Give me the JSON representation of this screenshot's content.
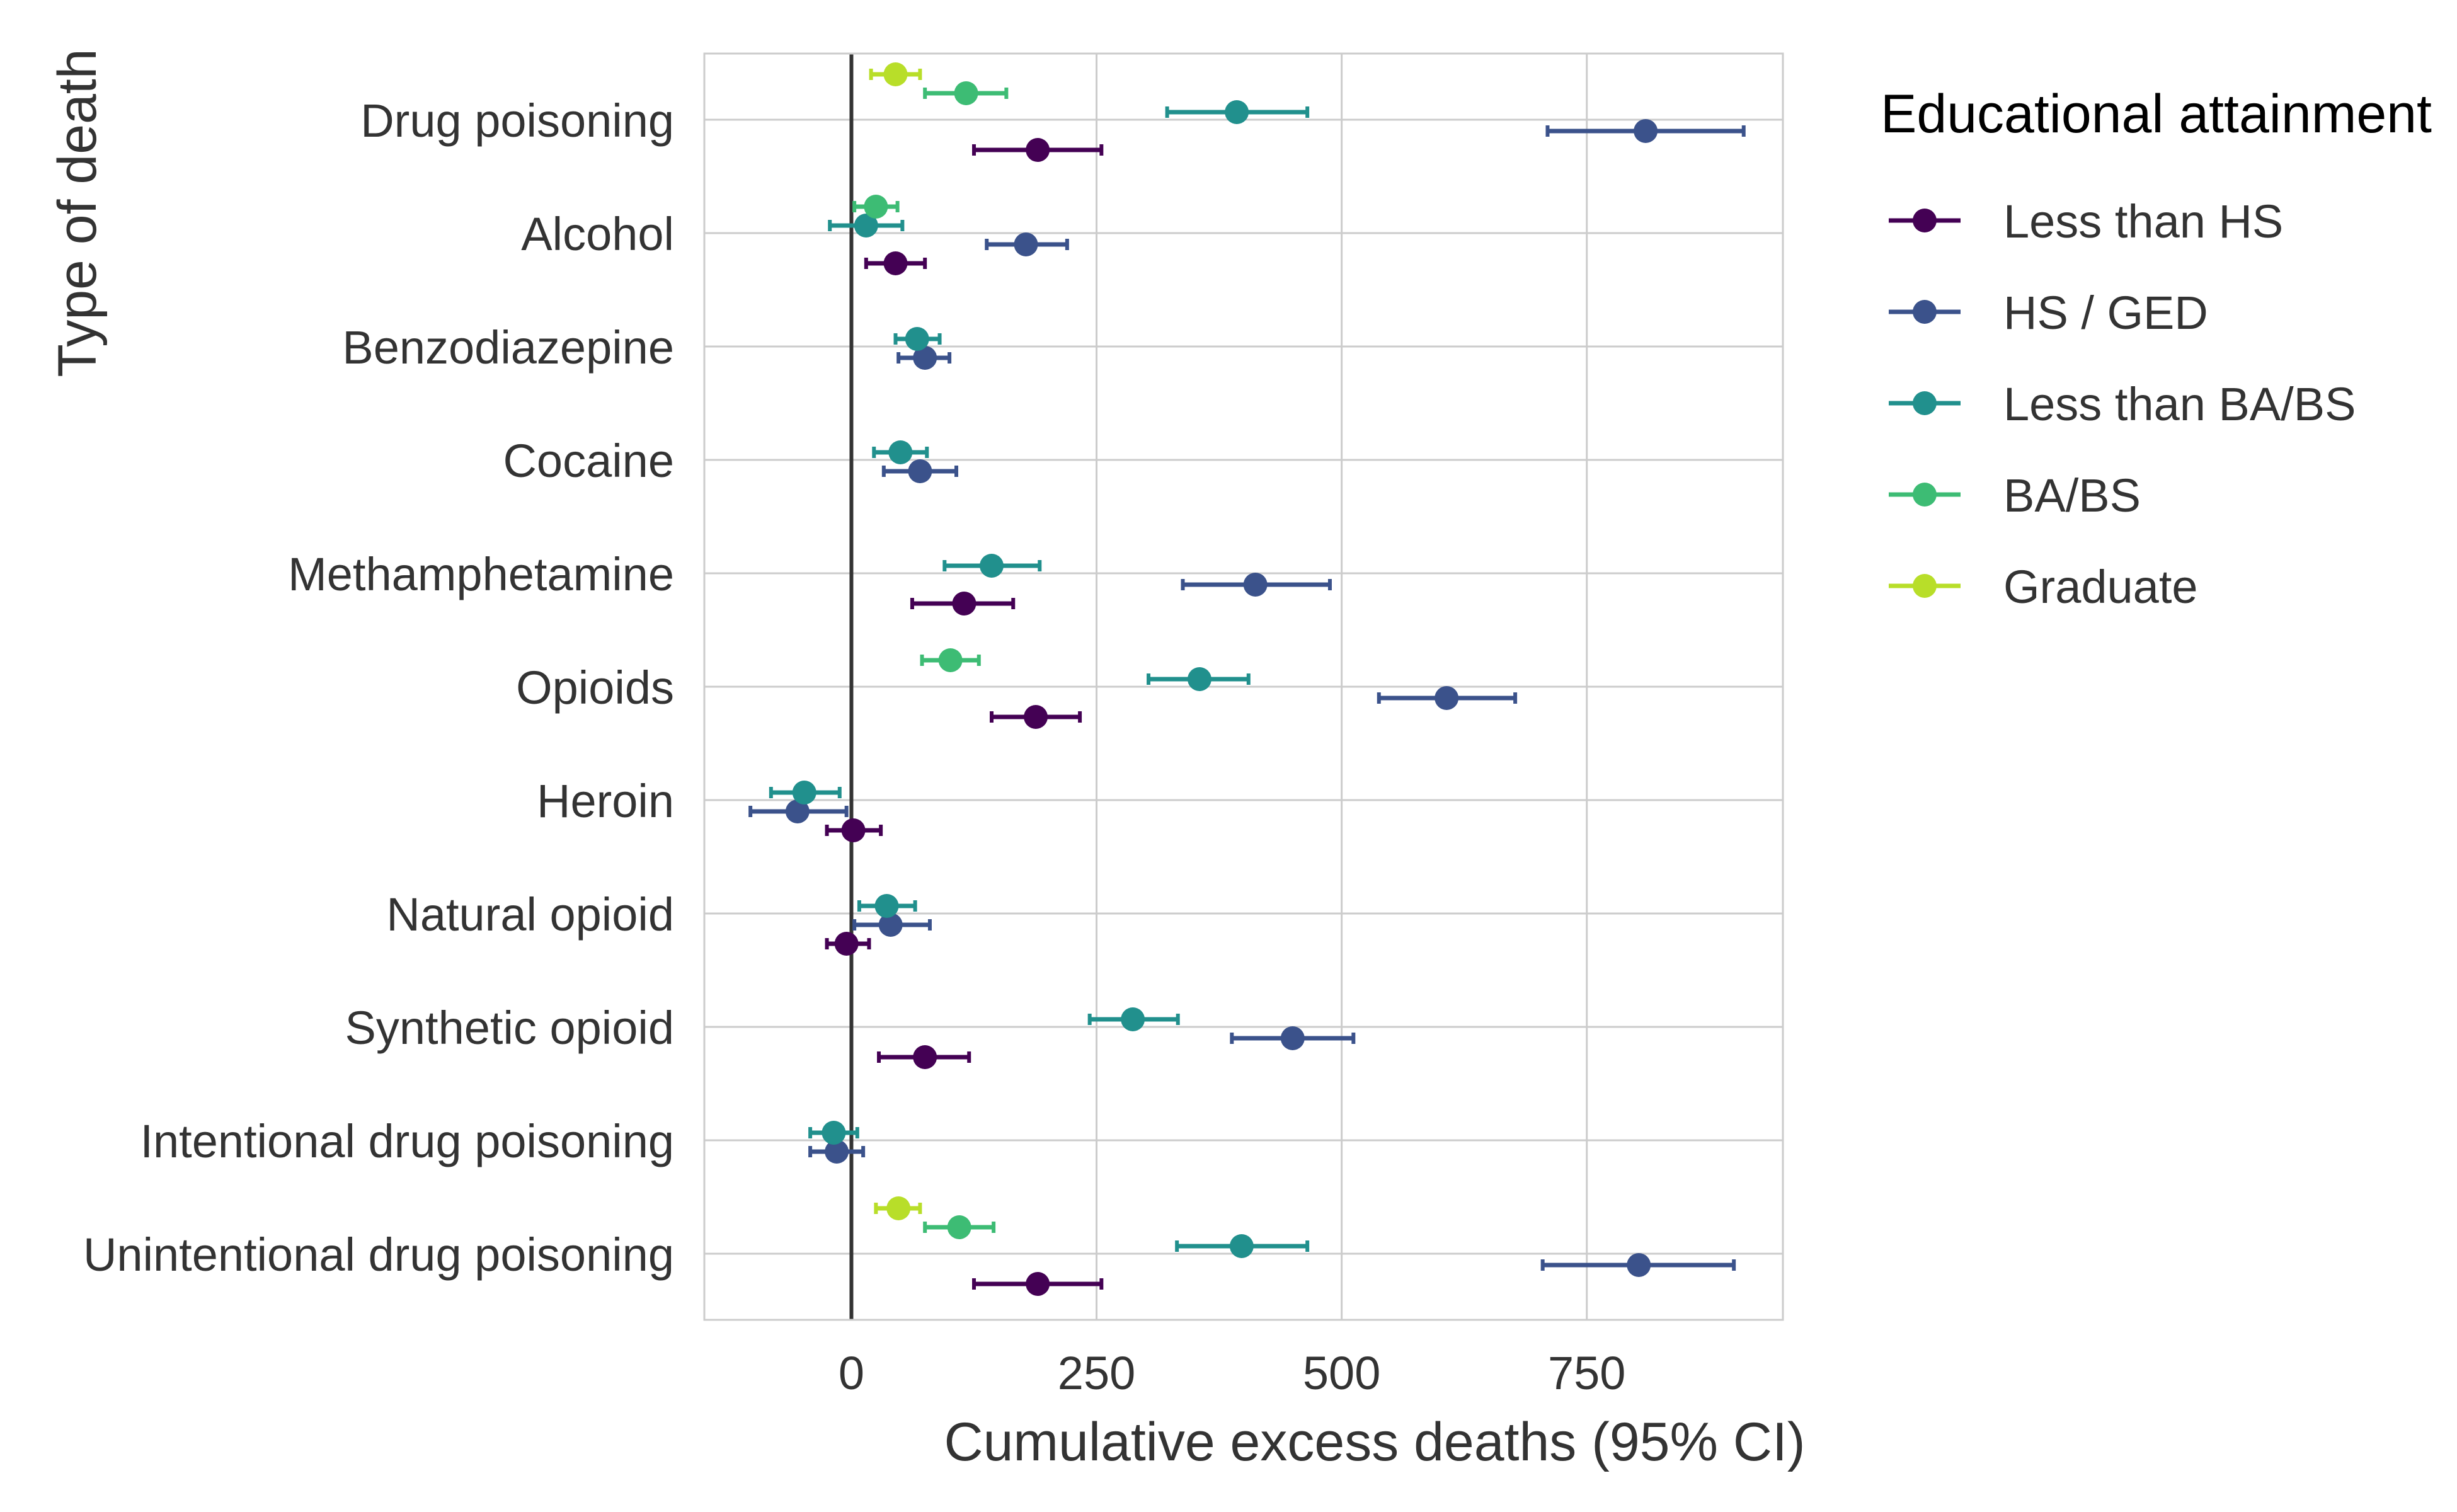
{
  "chart_data": {
    "type": "forest",
    "xlabel": "Cumulative excess deaths (95% CI)",
    "ylabel": "Type of death",
    "xlim": [
      -150,
      950
    ],
    "xticks": [
      0,
      250,
      500,
      750
    ],
    "xtick_labels": [
      "0",
      "250",
      "500",
      "750"
    ],
    "reference_line_x": 0,
    "grid": true,
    "legend_title": "Educational attainment",
    "legend_position": "right",
    "categories": [
      "Drug poisoning",
      "Alcohol",
      "Benzodiazepine",
      "Cocaine",
      "Methamphetamine",
      "Opioids",
      "Heroin",
      "Natural opioid",
      "Synthetic opioid",
      "Intentional drug poisoning",
      "Unintentional drug poisoning"
    ],
    "series": [
      {
        "name": "Less than HS",
        "color": "#440154",
        "points": [
          {
            "category": "Drug poisoning",
            "estimate": 190,
            "low": 125,
            "high": 255
          },
          {
            "category": "Alcohol",
            "estimate": 45,
            "low": 15,
            "high": 75
          },
          {
            "category": "Methamphetamine",
            "estimate": 115,
            "low": 62,
            "high": 165
          },
          {
            "category": "Opioids",
            "estimate": 188,
            "low": 143,
            "high": 233
          },
          {
            "category": "Heroin",
            "estimate": 2,
            "low": -25,
            "high": 30
          },
          {
            "category": "Natural opioid",
            "estimate": -5,
            "low": -25,
            "high": 18
          },
          {
            "category": "Synthetic opioid",
            "estimate": 75,
            "low": 28,
            "high": 120
          },
          {
            "category": "Unintentional drug poisoning",
            "estimate": 190,
            "low": 125,
            "high": 255
          }
        ]
      },
      {
        "name": "HS / GED",
        "color": "#3b528b",
        "points": [
          {
            "category": "Drug poisoning",
            "estimate": 810,
            "low": 710,
            "high": 910
          },
          {
            "category": "Alcohol",
            "estimate": 178,
            "low": 138,
            "high": 220
          },
          {
            "category": "Benzodiazepine",
            "estimate": 75,
            "low": 48,
            "high": 100
          },
          {
            "category": "Cocaine",
            "estimate": 70,
            "low": 33,
            "high": 107
          },
          {
            "category": "Methamphetamine",
            "estimate": 412,
            "low": 338,
            "high": 488
          },
          {
            "category": "Opioids",
            "estimate": 607,
            "low": 538,
            "high": 677
          },
          {
            "category": "Heroin",
            "estimate": -55,
            "low": -103,
            "high": -5
          },
          {
            "category": "Natural opioid",
            "estimate": 40,
            "low": 3,
            "high": 80
          },
          {
            "category": "Synthetic opioid",
            "estimate": 450,
            "low": 388,
            "high": 512
          },
          {
            "category": "Intentional drug poisoning",
            "estimate": -15,
            "low": -42,
            "high": 12
          },
          {
            "category": "Unintentional drug poisoning",
            "estimate": 803,
            "low": 705,
            "high": 900
          }
        ]
      },
      {
        "name": "Less than BA/BS",
        "color": "#21908d",
        "points": [
          {
            "category": "Drug poisoning",
            "estimate": 393,
            "low": 322,
            "high": 465
          },
          {
            "category": "Alcohol",
            "estimate": 15,
            "low": -22,
            "high": 52
          },
          {
            "category": "Benzodiazepine",
            "estimate": 67,
            "low": 45,
            "high": 90
          },
          {
            "category": "Cocaine",
            "estimate": 50,
            "low": 23,
            "high": 77
          },
          {
            "category": "Methamphetamine",
            "estimate": 143,
            "low": 95,
            "high": 192
          },
          {
            "category": "Opioids",
            "estimate": 355,
            "low": 303,
            "high": 405
          },
          {
            "category": "Heroin",
            "estimate": -48,
            "low": -82,
            "high": -12
          },
          {
            "category": "Natural opioid",
            "estimate": 36,
            "low": 8,
            "high": 65
          },
          {
            "category": "Synthetic opioid",
            "estimate": 287,
            "low": 243,
            "high": 333
          },
          {
            "category": "Intentional drug poisoning",
            "estimate": -18,
            "low": -42,
            "high": 6
          },
          {
            "category": "Unintentional drug poisoning",
            "estimate": 398,
            "low": 332,
            "high": 465
          }
        ]
      },
      {
        "name": "BA/BS",
        "color": "#3dbc74",
        "points": [
          {
            "category": "Drug poisoning",
            "estimate": 117,
            "low": 75,
            "high": 158
          },
          {
            "category": "Alcohol",
            "estimate": 25,
            "low": 3,
            "high": 47
          },
          {
            "category": "Opioids",
            "estimate": 101,
            "low": 72,
            "high": 130
          },
          {
            "category": "Unintentional drug poisoning",
            "estimate": 110,
            "low": 75,
            "high": 145
          }
        ]
      },
      {
        "name": "Graduate",
        "color": "#b8de29",
        "points": [
          {
            "category": "Drug poisoning",
            "estimate": 45,
            "low": 20,
            "high": 70
          },
          {
            "category": "Unintentional drug poisoning",
            "estimate": 48,
            "low": 25,
            "high": 70
          }
        ]
      }
    ]
  }
}
